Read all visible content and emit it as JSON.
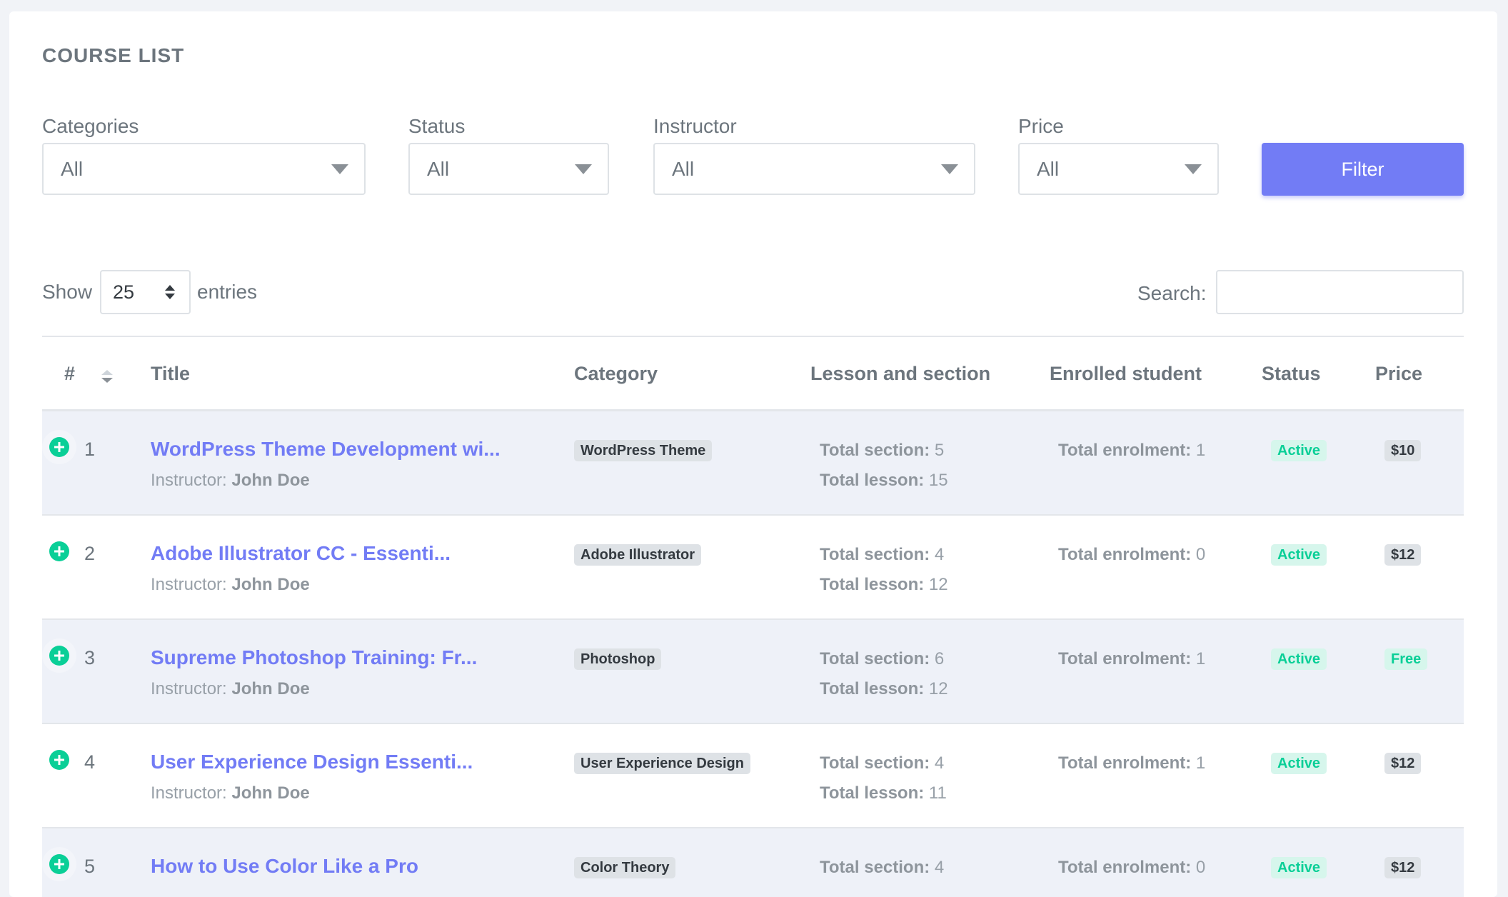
{
  "header": {
    "title": "COURSE LIST"
  },
  "filters": [
    {
      "label": "Categories",
      "value": "All"
    },
    {
      "label": "Status",
      "value": "All"
    },
    {
      "label": "Instructor",
      "value": "All"
    },
    {
      "label": "Price",
      "value": "All"
    }
  ],
  "filter_button": "Filter",
  "length": {
    "show": "Show",
    "value": "25",
    "entries": "entries"
  },
  "search": {
    "label": "Search:"
  },
  "table": {
    "columns": [
      "#",
      "Title",
      "Category",
      "Lesson and section",
      "Enrolled student",
      "Status",
      "Price"
    ],
    "rows": [
      {
        "number": 1,
        "title": "WordPress Theme Development wi...",
        "instructor_label": "Instructor:",
        "instructor": "John Doe",
        "category": "WordPress Theme",
        "section_label": "Total section:",
        "sections": 5,
        "lesson_label": "Total lesson:",
        "lessons": 15,
        "enrolment_label": "Total enrolment:",
        "enrolment": 1,
        "status": "Active",
        "price": "$10"
      },
      {
        "number": 2,
        "title": "Adobe Illustrator CC - Essenti...",
        "instructor_label": "Instructor:",
        "instructor": "John Doe",
        "category": "Adobe Illustrator",
        "section_label": "Total section:",
        "sections": 4,
        "lesson_label": "Total lesson:",
        "lessons": 12,
        "enrolment_label": "Total enrolment:",
        "enrolment": 0,
        "status": "Active",
        "price": "$12"
      },
      {
        "number": 3,
        "title": "Supreme Photoshop Training: Fr...",
        "instructor_label": "Instructor:",
        "instructor": "John Doe",
        "category": "Photoshop",
        "section_label": "Total section:",
        "sections": 6,
        "lesson_label": "Total lesson:",
        "lessons": 12,
        "enrolment_label": "Total enrolment:",
        "enrolment": 1,
        "status": "Active",
        "price": "Free"
      },
      {
        "number": 4,
        "title": "User Experience Design Essenti...",
        "instructor_label": "Instructor:",
        "instructor": "John Doe",
        "category": "User Experience Design",
        "section_label": "Total section:",
        "sections": 4,
        "lesson_label": "Total lesson:",
        "lessons": 11,
        "enrolment_label": "Total enrolment:",
        "enrolment": 1,
        "status": "Active",
        "price": "$12"
      },
      {
        "number": 5,
        "title": "How to Use Color Like a Pro",
        "category": "Color Theory",
        "section_label": "Total section:",
        "sections": 4,
        "enrolment_label": "Total enrolment:",
        "enrolment": 0,
        "status": "Active",
        "price": "$12"
      }
    ]
  }
}
